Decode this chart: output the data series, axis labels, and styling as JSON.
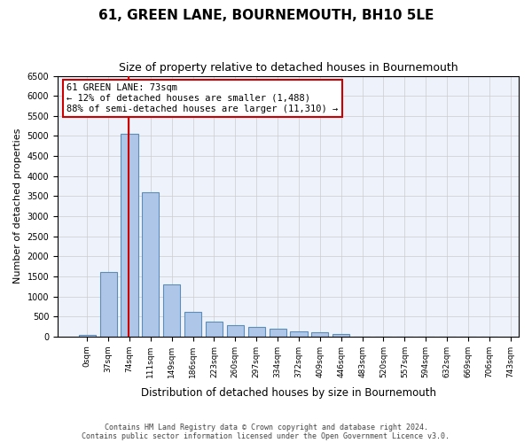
{
  "title": "61, GREEN LANE, BOURNEMOUTH, BH10 5LE",
  "subtitle": "Size of property relative to detached houses in Bournemouth",
  "xlabel": "Distribution of detached houses by size in Bournemouth",
  "ylabel": "Number of detached properties",
  "footer_line1": "Contains HM Land Registry data © Crown copyright and database right 2024.",
  "footer_line2": "Contains public sector information licensed under the Open Government Licence v3.0.",
  "bin_labels": [
    "0sqm",
    "37sqm",
    "74sqm",
    "111sqm",
    "149sqm",
    "186sqm",
    "223sqm",
    "260sqm",
    "297sqm",
    "334sqm",
    "372sqm",
    "409sqm",
    "446sqm",
    "483sqm",
    "520sqm",
    "557sqm",
    "594sqm",
    "632sqm",
    "669sqm",
    "706sqm",
    "743sqm"
  ],
  "bar_values": [
    50,
    1600,
    5050,
    3600,
    1300,
    620,
    380,
    290,
    230,
    190,
    130,
    100,
    60,
    0,
    0,
    0,
    0,
    0,
    0,
    0
  ],
  "bar_color": "#aec6e8",
  "bar_edge_color": "#5b8db8",
  "bg_color": "#eef3fb",
  "grid_color": "#cccccc",
  "property_size": 73,
  "property_line_color": "#cc0000",
  "annotation_text": "61 GREEN LANE: 73sqm\n← 12% of detached houses are smaller (1,488)\n88% of semi-detached houses are larger (11,310) →",
  "annotation_box_color": "#cc0000",
  "ylim": [
    0,
    6500
  ],
  "yticks": [
    0,
    500,
    1000,
    1500,
    2000,
    2500,
    3000,
    3500,
    4000,
    4500,
    5000,
    5500,
    6000,
    6500
  ]
}
